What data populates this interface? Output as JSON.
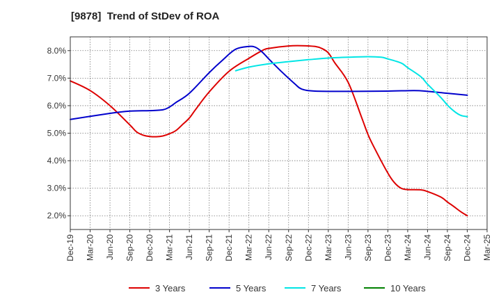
{
  "chart_data": {
    "type": "line",
    "title": "[9878]  Trend of StDev of ROA",
    "xlabel": "",
    "ylabel": "",
    "x_ticks": [
      "Dec-19",
      "Mar-20",
      "Jun-20",
      "Sep-20",
      "Dec-20",
      "Mar-21",
      "Jun-21",
      "Sep-21",
      "Dec-21",
      "Mar-22",
      "Jun-22",
      "Sep-22",
      "Dec-22",
      "Mar-23",
      "Jun-23",
      "Sep-23",
      "Dec-23",
      "Mar-24",
      "Jun-24",
      "Sep-24",
      "Dec-24",
      "Mar-25"
    ],
    "y_ticks": [
      "2.0%",
      "3.0%",
      "4.0%",
      "5.0%",
      "6.0%",
      "7.0%",
      "8.0%"
    ],
    "ylim": [
      1.5,
      8.5
    ],
    "y_unit": "%",
    "grid": true,
    "legend_position": "bottom",
    "series": [
      {
        "name": "3 Years",
        "color": "#dd0000",
        "points": [
          [
            "Dec-19",
            6.9
          ],
          [
            "Mar-20",
            6.55
          ],
          [
            "Jun-20",
            6.0
          ],
          [
            "Sep-20",
            5.3
          ],
          [
            "Oct-20",
            5.05
          ],
          [
            "Nov-20",
            4.93
          ],
          [
            "Dec-20",
            4.88
          ],
          [
            "Jan-21",
            4.87
          ],
          [
            "Feb-21",
            4.9
          ],
          [
            "Mar-21",
            4.98
          ],
          [
            "Apr-21",
            5.1
          ],
          [
            "May-21",
            5.32
          ],
          [
            "Jun-21",
            5.55
          ],
          [
            "Jul-21",
            5.88
          ],
          [
            "Sep-21",
            6.5
          ],
          [
            "Dec-21",
            7.25
          ],
          [
            "Mar-22",
            7.72
          ],
          [
            "May-22",
            8.0
          ],
          [
            "Jun-22",
            8.08
          ],
          [
            "Sep-22",
            8.17
          ],
          [
            "Nov-22",
            8.18
          ],
          [
            "Jan-23",
            8.15
          ],
          [
            "Feb-23",
            8.08
          ],
          [
            "Mar-23",
            7.92
          ],
          [
            "Apr-23",
            7.55
          ],
          [
            "Jun-23",
            6.85
          ],
          [
            "Aug-23",
            5.6
          ],
          [
            "Sep-23",
            4.95
          ],
          [
            "Oct-23",
            4.45
          ],
          [
            "Dec-23",
            3.55
          ],
          [
            "Jan-24",
            3.2
          ],
          [
            "Feb-24",
            3.0
          ],
          [
            "Mar-24",
            2.95
          ],
          [
            "May-24",
            2.94
          ],
          [
            "Jun-24",
            2.88
          ],
          [
            "Aug-24",
            2.68
          ],
          [
            "Sep-24",
            2.5
          ],
          [
            "Oct-24",
            2.33
          ],
          [
            "Nov-24",
            2.15
          ],
          [
            "Dec-24",
            2.0
          ]
        ]
      },
      {
        "name": "5 Years",
        "color": "#0000cc",
        "points": [
          [
            "Dec-19",
            5.5
          ],
          [
            "Jun-20",
            5.72
          ],
          [
            "Sep-20",
            5.8
          ],
          [
            "Dec-20",
            5.82
          ],
          [
            "Feb-21",
            5.85
          ],
          [
            "Mar-21",
            5.95
          ],
          [
            "Apr-21",
            6.12
          ],
          [
            "Jun-21",
            6.45
          ],
          [
            "Sep-21",
            7.2
          ],
          [
            "Nov-21",
            7.65
          ],
          [
            "Jan-22",
            8.05
          ],
          [
            "Mar-22",
            8.15
          ],
          [
            "Apr-22",
            8.12
          ],
          [
            "May-22",
            7.95
          ],
          [
            "Jun-22",
            7.7
          ],
          [
            "Aug-22",
            7.22
          ],
          [
            "Oct-22",
            6.78
          ],
          [
            "Nov-22",
            6.6
          ],
          [
            "Jan-23",
            6.53
          ],
          [
            "Jun-23",
            6.52
          ],
          [
            "Dec-23",
            6.53
          ],
          [
            "Apr-24",
            6.55
          ],
          [
            "Jun-24",
            6.52
          ],
          [
            "Sep-24",
            6.45
          ],
          [
            "Dec-24",
            6.38
          ]
        ]
      },
      {
        "name": "7 Years",
        "color": "#00e5e5",
        "points": [
          [
            "Jan-22",
            7.27
          ],
          [
            "Mar-22",
            7.4
          ],
          [
            "Jun-22",
            7.52
          ],
          [
            "Sep-22",
            7.6
          ],
          [
            "Dec-22",
            7.67
          ],
          [
            "Mar-23",
            7.73
          ],
          [
            "Jun-23",
            7.76
          ],
          [
            "Sep-23",
            7.78
          ],
          [
            "Nov-23",
            7.76
          ],
          [
            "Dec-23",
            7.7
          ],
          [
            "Feb-24",
            7.55
          ],
          [
            "Mar-24",
            7.38
          ],
          [
            "May-24",
            7.05
          ],
          [
            "Jun-24",
            6.78
          ],
          [
            "Aug-24",
            6.3
          ],
          [
            "Sep-24",
            6.02
          ],
          [
            "Oct-24",
            5.8
          ],
          [
            "Nov-24",
            5.65
          ],
          [
            "Dec-24",
            5.6
          ]
        ]
      },
      {
        "name": "10 Years",
        "color": "#008000",
        "points": []
      }
    ]
  }
}
